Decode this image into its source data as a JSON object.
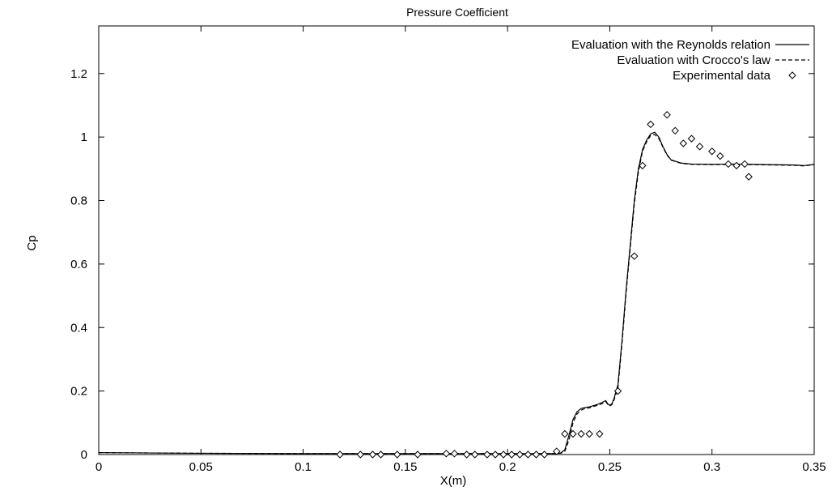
{
  "chart_data": {
    "type": "line",
    "title": "Pressure Coefficient",
    "xlabel": "X(m)",
    "ylabel": "Cp",
    "xlim": [
      0,
      0.35
    ],
    "ylim": [
      0,
      1.35
    ],
    "x_ticks": [
      0,
      0.05,
      0.1,
      0.15,
      0.2,
      0.25,
      0.3,
      0.35
    ],
    "x_tick_labels": [
      "0",
      "0.05",
      "0.1",
      "0.15",
      "0.2",
      "0.25",
      "0.3",
      "0.35"
    ],
    "y_ticks": [
      0,
      0.2,
      0.4,
      0.6,
      0.8,
      1.0,
      1.2
    ],
    "y_tick_labels": [
      "0",
      "0.2",
      "0.4",
      "0.6",
      "0.8",
      "1",
      "1.2"
    ],
    "grid": false,
    "legend_position": "top-right",
    "series": [
      {
        "name": "Evaluation with the Reynolds relation",
        "style": "solid",
        "marker": "none",
        "x": [
          0,
          0.05,
          0.1,
          0.15,
          0.2,
          0.222,
          0.226,
          0.228,
          0.23,
          0.232,
          0.234,
          0.236,
          0.238,
          0.24,
          0.244,
          0.246,
          0.248,
          0.249,
          0.25,
          0.251,
          0.252,
          0.254,
          0.256,
          0.258,
          0.26,
          0.262,
          0.264,
          0.266,
          0.268,
          0.27,
          0.272,
          0.274,
          0.276,
          0.278,
          0.28,
          0.285,
          0.29,
          0.3,
          0.31,
          0.32,
          0.33,
          0.34,
          0.345,
          0.35
        ],
        "y": [
          0.006,
          0.004,
          0.003,
          0.003,
          0.003,
          0.003,
          0.005,
          0.015,
          0.06,
          0.11,
          0.135,
          0.145,
          0.148,
          0.15,
          0.158,
          0.163,
          0.17,
          0.16,
          0.155,
          0.16,
          0.175,
          0.22,
          0.36,
          0.52,
          0.66,
          0.8,
          0.9,
          0.96,
          0.99,
          1.01,
          1.015,
          1.0,
          0.97,
          0.945,
          0.928,
          0.918,
          0.915,
          0.914,
          0.915,
          0.914,
          0.913,
          0.912,
          0.91,
          0.914
        ]
      },
      {
        "name": "Evaluation with Crocco's law",
        "style": "dashed",
        "marker": "none",
        "x": [
          0,
          0.05,
          0.1,
          0.15,
          0.2,
          0.222,
          0.226,
          0.228,
          0.23,
          0.232,
          0.234,
          0.236,
          0.238,
          0.24,
          0.244,
          0.246,
          0.248,
          0.249,
          0.25,
          0.251,
          0.252,
          0.254,
          0.256,
          0.258,
          0.26,
          0.262,
          0.264,
          0.266,
          0.268,
          0.27,
          0.272,
          0.274,
          0.276,
          0.278,
          0.28,
          0.285,
          0.29,
          0.3,
          0.31,
          0.32,
          0.33,
          0.34,
          0.345,
          0.35
        ],
        "y": [
          0.006,
          0.004,
          0.003,
          0.003,
          0.003,
          0.003,
          0.004,
          0.01,
          0.045,
          0.1,
          0.128,
          0.14,
          0.145,
          0.147,
          0.155,
          0.16,
          0.167,
          0.158,
          0.153,
          0.157,
          0.17,
          0.21,
          0.35,
          0.51,
          0.65,
          0.79,
          0.89,
          0.955,
          0.985,
          1.005,
          1.008,
          0.995,
          0.968,
          0.943,
          0.927,
          0.917,
          0.914,
          0.913,
          0.914,
          0.913,
          0.912,
          0.911,
          0.909,
          0.913
        ]
      },
      {
        "name": "Experimental data",
        "style": "none",
        "marker": "diamond",
        "x": [
          0.118,
          0.128,
          0.134,
          0.138,
          0.146,
          0.156,
          0.17,
          0.174,
          0.18,
          0.184,
          0.19,
          0.194,
          0.198,
          0.202,
          0.206,
          0.21,
          0.214,
          0.218,
          0.224,
          0.228,
          0.232,
          0.236,
          0.24,
          0.245,
          0.254,
          0.262,
          0.266,
          0.27,
          0.278,
          0.282,
          0.286,
          0.29,
          0.294,
          0.3,
          0.304,
          0.308,
          0.312,
          0.316,
          0.318
        ],
        "y": [
          0.0,
          0.0,
          0.0,
          0.0,
          0.0,
          0.0,
          0.003,
          0.003,
          0.0,
          0.0,
          0.0,
          0.0,
          0.0,
          0.0,
          0.0,
          0.0,
          0.0,
          0.0,
          0.01,
          0.065,
          0.065,
          0.065,
          0.065,
          0.065,
          0.2,
          0.625,
          0.91,
          1.04,
          1.07,
          1.02,
          0.98,
          0.995,
          0.97,
          0.955,
          0.94,
          0.915,
          0.91,
          0.915,
          0.875
        ]
      }
    ]
  }
}
